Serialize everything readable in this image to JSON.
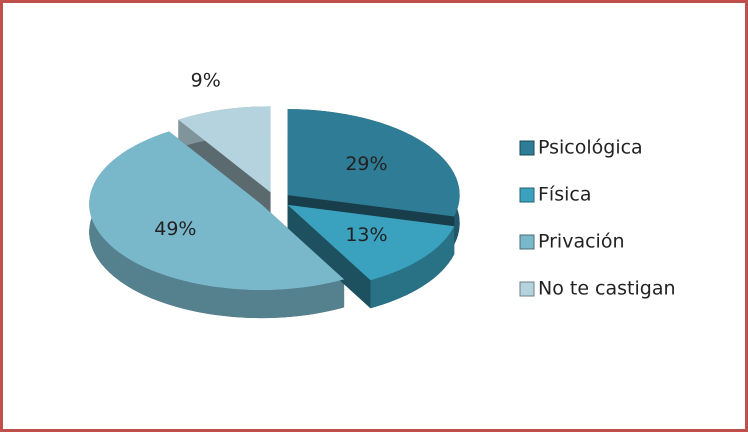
{
  "chart_data": {
    "type": "pie",
    "categories": [
      "Psicológica",
      "Física",
      "Privación",
      "No te castigan"
    ],
    "values": [
      29,
      13,
      49,
      9
    ],
    "value_labels": [
      "29%",
      "13%",
      "49%",
      "9%"
    ],
    "colors": [
      "#2f7c96",
      "#3aa2be",
      "#79b7cb",
      "#b5d3de"
    ],
    "legend": "right"
  }
}
